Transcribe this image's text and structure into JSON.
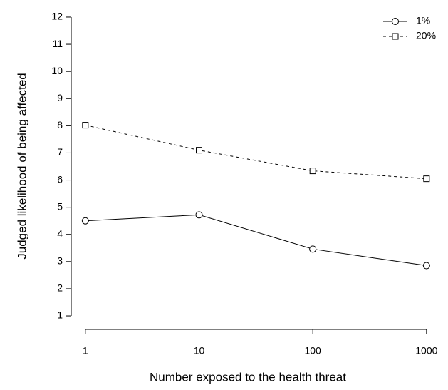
{
  "chart_data": {
    "type": "line",
    "xlabel": "Number exposed to the health threat",
    "ylabel": "Judged likelihood of being affected",
    "x": [
      1,
      10,
      100,
      1000
    ],
    "series": [
      {
        "name": "1%",
        "color": "#000000",
        "linestyle": "solid",
        "marker": "circle",
        "values": [
          4.5,
          4.72,
          3.46,
          2.85
        ]
      },
      {
        "name": "20%",
        "color": "#000000",
        "linestyle": "dashed",
        "marker": "square",
        "values": [
          8.02,
          7.1,
          6.34,
          6.05
        ]
      }
    ],
    "xscale": "log",
    "xlim": [
      0.76,
      1318
    ],
    "xticks": [
      1,
      10,
      100,
      1000
    ],
    "ylim": [
      0.56,
      12.44
    ],
    "yticks": [
      1,
      2,
      3,
      4,
      5,
      6,
      7,
      8,
      9,
      10,
      11,
      12
    ],
    "legend": "top-right"
  }
}
